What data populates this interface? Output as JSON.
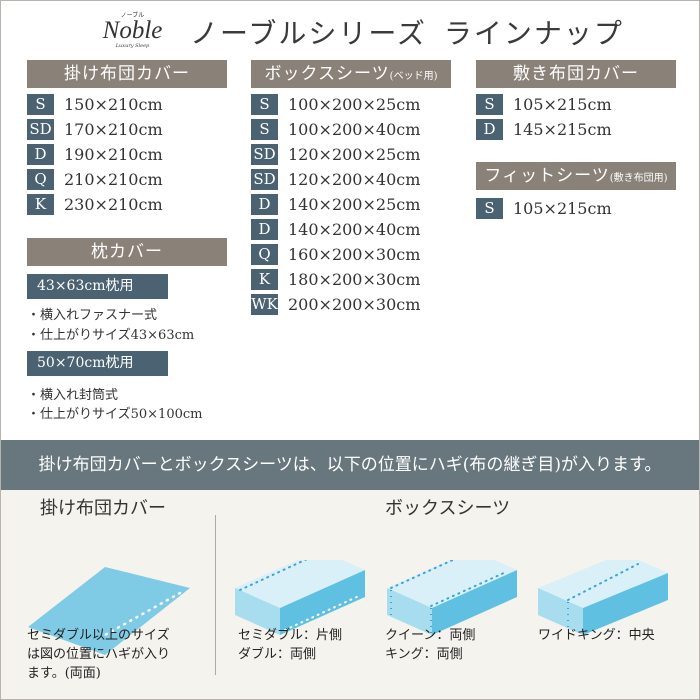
{
  "logo": {
    "brand": "Noble",
    "ruby": "ノーブル",
    "tagline": "Luxury Sleep"
  },
  "title": "ノーブルシリーズ ラインナップ",
  "colors": {
    "header": "#8a8178",
    "badge": "#4a6272",
    "banner": "#67777d",
    "illustration": "#7fcbe6"
  },
  "kakefuton": {
    "title": "掛け布団カバー",
    "rows": [
      {
        "size": "S",
        "dim": "150×210cm"
      },
      {
        "size": "SD",
        "dim": "170×210cm"
      },
      {
        "size": "D",
        "dim": "190×210cm"
      },
      {
        "size": "Q",
        "dim": "210×210cm"
      },
      {
        "size": "K",
        "dim": "230×210cm"
      }
    ]
  },
  "pillow": {
    "title": "枕カバー",
    "types": [
      {
        "label": "43×63cm枕用",
        "notes": [
          "・横入れファスナー式",
          "・仕上がりサイズ43×63cm"
        ]
      },
      {
        "label": "50×70cm枕用",
        "notes": [
          "・横入れ封筒式",
          "・仕上がりサイズ50×100cm"
        ]
      }
    ]
  },
  "box": {
    "title": "ボックスシーツ",
    "title_note": "(ベッド用)",
    "rows": [
      {
        "size": "S",
        "dim": "100×200×25cm"
      },
      {
        "size": "S",
        "dim": "100×200×40cm"
      },
      {
        "size": "SD",
        "dim": "120×200×25cm"
      },
      {
        "size": "SD",
        "dim": "120×200×40cm"
      },
      {
        "size": "D",
        "dim": "140×200×25cm"
      },
      {
        "size": "D",
        "dim": "140×200×40cm"
      },
      {
        "size": "Q",
        "dim": "160×200×30cm"
      },
      {
        "size": "K",
        "dim": "180×200×30cm"
      },
      {
        "size": "WK",
        "dim": "200×200×30cm"
      }
    ]
  },
  "shikifuton": {
    "title": "敷き布団カバー",
    "rows": [
      {
        "size": "S",
        "dim": "105×215cm"
      },
      {
        "size": "D",
        "dim": "145×215cm"
      }
    ]
  },
  "fitted": {
    "title": "フィットシーツ",
    "title_note": "(敷き布団用)",
    "rows": [
      {
        "size": "S",
        "dim": "105×215cm"
      }
    ]
  },
  "banner": "掛け布団カバーとボックスシーツは、以下の位置にハギ(布の継ぎ目)が入ります。",
  "seams": {
    "kake_title": "掛け布団カバー",
    "kake_caption": [
      "セミダブル以上のサイズ",
      "は図の位置にハギが入り",
      "ます。(両面)"
    ],
    "box_title": "ボックスシーツ",
    "box_captions": [
      [
        "セミダブル：片側",
        "ダブル：両側"
      ],
      [
        "クイーン：両側",
        "キング：両側"
      ],
      [
        "ワイドキング：中央"
      ]
    ]
  }
}
